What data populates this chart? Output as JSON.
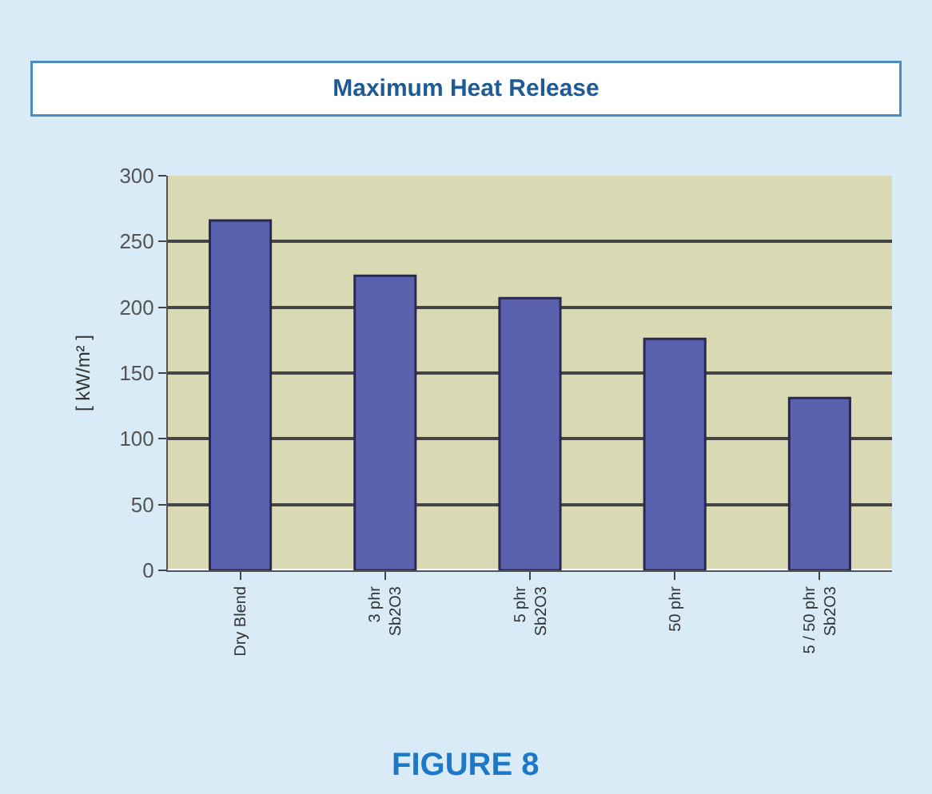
{
  "chart_data": {
    "type": "bar",
    "title": "Maximum Heat Release",
    "ylabel": "[ kW/m² ]",
    "categories": [
      "Dry Blend",
      "3 phr\nSb2O3",
      "5 phr\nSb2O3",
      "50 phr",
      "5 / 50 phr\nSb2O3"
    ],
    "values": [
      266,
      224,
      207,
      176,
      131
    ],
    "color": "#5a62b0",
    "ylim": [
      0,
      300
    ],
    "yticks": [
      0,
      50,
      100,
      150,
      200,
      250,
      300
    ],
    "grid": "y",
    "annotations": [
      "FIGURE 8"
    ]
  }
}
